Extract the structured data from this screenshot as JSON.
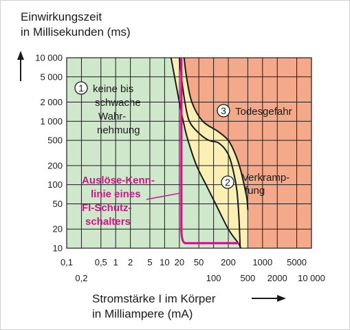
{
  "chart_data": {
    "type": "area",
    "title": "",
    "ylabel_lines": [
      "Einwirkungszeit",
      "in Millisekunden (ms)"
    ],
    "xlabel_lines": [
      "Stromstärke I im Körper",
      "in Milliampere (mA)"
    ],
    "x_scale": "log",
    "y_scale": "log",
    "xlim": [
      0.1,
      10000
    ],
    "ylim": [
      10,
      10000
    ],
    "grid": true,
    "y_ticks": [
      {
        "value": 10,
        "label": "10"
      },
      {
        "value": 20,
        "label": "20"
      },
      {
        "value": 50,
        "label": "50"
      },
      {
        "value": 100,
        "label": "100"
      },
      {
        "value": 200,
        "label": "200"
      },
      {
        "value": 500,
        "label": "500"
      },
      {
        "value": 1000,
        "label": "1 000"
      },
      {
        "value": 2000,
        "label": "2 000"
      },
      {
        "value": 5000,
        "label": "5 000"
      },
      {
        "value": 10000,
        "label": "10 000"
      }
    ],
    "x_ticks_row1": [
      {
        "value": 0.1,
        "label": "0,1"
      },
      {
        "value": 0.5,
        "label": "0,5"
      },
      {
        "value": 1,
        "label": "1"
      },
      {
        "value": 2,
        "label": "2"
      },
      {
        "value": 5,
        "label": "5"
      },
      {
        "value": 10,
        "label": "10"
      },
      {
        "value": 20,
        "label": "20"
      },
      {
        "value": 50,
        "label": "50"
      },
      {
        "value": 200,
        "label": "200"
      },
      {
        "value": 1000,
        "label": "1000"
      },
      {
        "value": 5000,
        "label": "5000"
      }
    ],
    "x_ticks_row2": [
      {
        "value": 0.2,
        "label": "0,2"
      },
      {
        "value": 100,
        "label": "100"
      },
      {
        "value": 500,
        "label": "500"
      },
      {
        "value": 2000,
        "label": "2000"
      },
      {
        "value": 10000,
        "label": "10 000"
      }
    ],
    "boundaries": [
      {
        "id": "b1",
        "points": [
          [
            13.5,
            10000
          ],
          [
            16,
            5000
          ],
          [
            20,
            2000
          ],
          [
            24,
            1000
          ],
          [
            30,
            500
          ],
          [
            45,
            200
          ],
          [
            70,
            100
          ],
          [
            110,
            50
          ],
          [
            200,
            20
          ],
          [
            320,
            12
          ],
          [
            360,
            10
          ]
        ]
      },
      {
        "id": "b2",
        "points": [
          [
            20,
            10000
          ],
          [
            22,
            5000
          ],
          [
            26,
            2000
          ],
          [
            32,
            1000
          ],
          [
            50,
            650
          ],
          [
            80,
            500
          ],
          [
            130,
            450
          ],
          [
            200,
            300
          ],
          [
            260,
            150
          ],
          [
            300,
            80
          ],
          [
            330,
            30
          ],
          [
            350,
            10
          ]
        ]
      },
      {
        "id": "b3",
        "points": [
          [
            25,
            10000
          ],
          [
            28,
            5000
          ],
          [
            36,
            2000
          ],
          [
            60,
            1000
          ],
          [
            120,
            700
          ],
          [
            200,
            500
          ],
          [
            280,
            300
          ],
          [
            350,
            180
          ],
          [
            420,
            100
          ],
          [
            480,
            60
          ],
          [
            500,
            40
          ]
        ]
      }
    ],
    "rcd_curve": {
      "points": [
        [
          22,
          13000
        ],
        [
          22,
          20
        ],
        [
          23,
          14
        ],
        [
          27,
          12
        ],
        [
          330,
          12
        ]
      ]
    },
    "regions": [
      {
        "number": "1",
        "lines": [
          "keine bis",
          "schwache",
          "Wahr-",
          "nehmung"
        ]
      },
      {
        "number": "2",
        "lines": [
          "Verkramp-",
          "fung"
        ]
      },
      {
        "number": "3",
        "lines": [
          "Todesgefahr"
        ]
      }
    ],
    "annotation": {
      "lines": [
        "Auslöse-Kenn-",
        "linie eines",
        "FI-Schutz-",
        "schalters"
      ],
      "color": "#d0148a"
    },
    "colors": {
      "zone1": "#cfe8cc",
      "zone2": "#fbefb4",
      "zone3": "#f3a98a",
      "grid": "#1a1a1a",
      "boundary": "#1a1a1a",
      "rcd": "#d0148a",
      "frame": "#cfcfcf"
    }
  }
}
